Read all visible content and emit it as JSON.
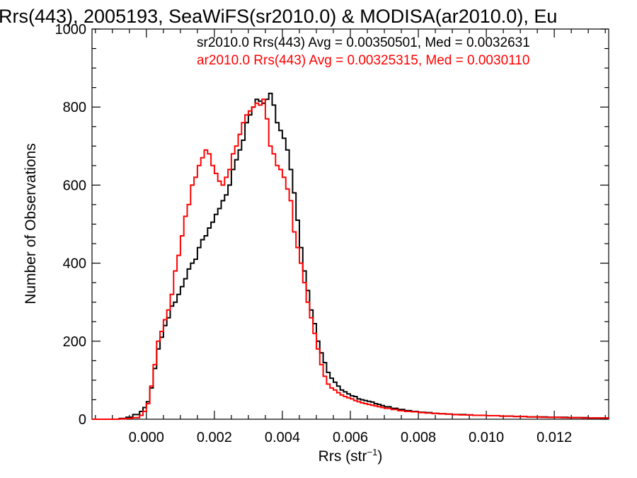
{
  "colors": {
    "series_black": "#000000",
    "series_red": "#ff0000",
    "background": "#ffffff"
  },
  "chart_data": {
    "type": "histogram",
    "title": "Rrs(443), 2005193, SeaWiFS(sr2010.0) & MODISA(ar2010.0), Eu",
    "xlabel": "Rrs (str",
    "xlabel_sup": "−1",
    "xlabel_end": ")",
    "ylabel": "Number of Observations",
    "xlim": [
      -0.0016,
      0.0136
    ],
    "ylim": [
      0,
      1000
    ],
    "x_ticks": [
      0.0,
      0.002,
      0.004,
      0.006,
      0.008,
      0.01,
      0.012
    ],
    "x_tick_labels": [
      "0.000",
      "0.002",
      "0.004",
      "0.006",
      "0.008",
      "0.010",
      "0.012"
    ],
    "y_ticks": [
      0,
      200,
      400,
      600,
      800,
      1000
    ],
    "y_tick_labels": [
      "0",
      "200",
      "400",
      "600",
      "800",
      "1000"
    ],
    "legend_position": "top-right",
    "annotations": [
      "sr2010.0 Rrs(443) Avg = 0.00350501, Med = 0.0032631",
      "ar2010.0 Rrs(443) Avg = 0.00325315, Med = 0.0030110"
    ],
    "series": [
      {
        "name": "sr2010.0",
        "color": "#000000",
        "points": [
          [
            -0.0016,
            0
          ],
          [
            -0.001,
            0
          ],
          [
            -0.0008,
            2
          ],
          [
            -0.0006,
            5
          ],
          [
            -0.0004,
            12
          ],
          [
            -0.0002,
            20
          ],
          [
            -0.0001,
            30
          ],
          [
            0.0,
            45
          ],
          [
            0.0001,
            80
          ],
          [
            0.0002,
            130
          ],
          [
            0.0003,
            180
          ],
          [
            0.0004,
            210
          ],
          [
            0.0005,
            240
          ],
          [
            0.0006,
            260
          ],
          [
            0.0007,
            290
          ],
          [
            0.0008,
            300
          ],
          [
            0.0009,
            320
          ],
          [
            0.001,
            340
          ],
          [
            0.0011,
            360
          ],
          [
            0.0012,
            385
          ],
          [
            0.0013,
            400
          ],
          [
            0.0014,
            410
          ],
          [
            0.0015,
            440
          ],
          [
            0.0016,
            460
          ],
          [
            0.0017,
            470
          ],
          [
            0.0018,
            490
          ],
          [
            0.0019,
            505
          ],
          [
            0.002,
            525
          ],
          [
            0.0021,
            540
          ],
          [
            0.0022,
            560
          ],
          [
            0.0023,
            575
          ],
          [
            0.0024,
            600
          ],
          [
            0.0025,
            640
          ],
          [
            0.0026,
            665
          ],
          [
            0.0027,
            690
          ],
          [
            0.0028,
            715
          ],
          [
            0.0029,
            760
          ],
          [
            0.003,
            780
          ],
          [
            0.0031,
            800
          ],
          [
            0.0032,
            820
          ],
          [
            0.0033,
            815
          ],
          [
            0.0034,
            810
          ],
          [
            0.0035,
            820
          ],
          [
            0.0036,
            835
          ],
          [
            0.0037,
            805
          ],
          [
            0.0038,
            760
          ],
          [
            0.0039,
            740
          ],
          [
            0.004,
            720
          ],
          [
            0.0041,
            690
          ],
          [
            0.0042,
            640
          ],
          [
            0.0043,
            580
          ],
          [
            0.0044,
            510
          ],
          [
            0.0045,
            440
          ],
          [
            0.0046,
            380
          ],
          [
            0.0047,
            330
          ],
          [
            0.0048,
            280
          ],
          [
            0.0049,
            245
          ],
          [
            0.005,
            200
          ],
          [
            0.0051,
            170
          ],
          [
            0.0052,
            145
          ],
          [
            0.0053,
            120
          ],
          [
            0.0054,
            105
          ],
          [
            0.0055,
            95
          ],
          [
            0.0056,
            85
          ],
          [
            0.0057,
            75
          ],
          [
            0.0058,
            70
          ],
          [
            0.0059,
            65
          ],
          [
            0.006,
            60
          ],
          [
            0.0061,
            58
          ],
          [
            0.0062,
            52
          ],
          [
            0.0063,
            50
          ],
          [
            0.0064,
            48
          ],
          [
            0.0065,
            46
          ],
          [
            0.0066,
            44
          ],
          [
            0.0067,
            40
          ],
          [
            0.0068,
            38
          ],
          [
            0.0069,
            35
          ],
          [
            0.007,
            32
          ],
          [
            0.0072,
            28
          ],
          [
            0.0074,
            25
          ],
          [
            0.0076,
            22
          ],
          [
            0.0078,
            20
          ],
          [
            0.008,
            18
          ],
          [
            0.0082,
            17
          ],
          [
            0.0084,
            15
          ],
          [
            0.0086,
            14
          ],
          [
            0.0088,
            13
          ],
          [
            0.009,
            12
          ],
          [
            0.0092,
            12
          ],
          [
            0.0094,
            11
          ],
          [
            0.0096,
            10
          ],
          [
            0.0098,
            10
          ],
          [
            0.01,
            9
          ],
          [
            0.0102,
            9
          ],
          [
            0.0104,
            8
          ],
          [
            0.0106,
            8
          ],
          [
            0.0108,
            7
          ],
          [
            0.011,
            7
          ],
          [
            0.0112,
            6
          ],
          [
            0.0114,
            6
          ],
          [
            0.0116,
            6
          ],
          [
            0.0118,
            5
          ],
          [
            0.012,
            5
          ],
          [
            0.0122,
            5
          ],
          [
            0.0124,
            4
          ],
          [
            0.0126,
            4
          ],
          [
            0.0128,
            4
          ],
          [
            0.013,
            3
          ],
          [
            0.0132,
            3
          ],
          [
            0.0134,
            3
          ],
          [
            0.0136,
            2
          ]
        ]
      },
      {
        "name": "ar2010.0",
        "color": "#ff0000",
        "points": [
          [
            -0.0016,
            0
          ],
          [
            -0.001,
            0
          ],
          [
            -0.0008,
            1
          ],
          [
            -0.0006,
            2
          ],
          [
            -0.0004,
            4
          ],
          [
            -0.0002,
            10
          ],
          [
            -0.0001,
            20
          ],
          [
            0.0,
            40
          ],
          [
            0.0001,
            85
          ],
          [
            0.0002,
            140
          ],
          [
            0.0003,
            200
          ],
          [
            0.0004,
            225
          ],
          [
            0.0005,
            255
          ],
          [
            0.0006,
            280
          ],
          [
            0.0007,
            320
          ],
          [
            0.0008,
            380
          ],
          [
            0.0009,
            420
          ],
          [
            0.001,
            470
          ],
          [
            0.0011,
            520
          ],
          [
            0.0012,
            550
          ],
          [
            0.0013,
            600
          ],
          [
            0.0014,
            620
          ],
          [
            0.0015,
            650
          ],
          [
            0.0016,
            670
          ],
          [
            0.0017,
            690
          ],
          [
            0.0018,
            680
          ],
          [
            0.0019,
            650
          ],
          [
            0.002,
            630
          ],
          [
            0.0021,
            610
          ],
          [
            0.0022,
            600
          ],
          [
            0.0023,
            620
          ],
          [
            0.0024,
            640
          ],
          [
            0.0025,
            680
          ],
          [
            0.0026,
            700
          ],
          [
            0.0027,
            730
          ],
          [
            0.0028,
            760
          ],
          [
            0.0029,
            780
          ],
          [
            0.003,
            790
          ],
          [
            0.0031,
            800
          ],
          [
            0.0032,
            810
          ],
          [
            0.0033,
            805
          ],
          [
            0.0034,
            820
          ],
          [
            0.0035,
            770
          ],
          [
            0.0036,
            700
          ],
          [
            0.0037,
            680
          ],
          [
            0.0038,
            650
          ],
          [
            0.0039,
            640
          ],
          [
            0.004,
            620
          ],
          [
            0.0041,
            590
          ],
          [
            0.0042,
            560
          ],
          [
            0.0043,
            480
          ],
          [
            0.0044,
            440
          ],
          [
            0.0045,
            400
          ],
          [
            0.0046,
            350
          ],
          [
            0.0047,
            300
          ],
          [
            0.0048,
            260
          ],
          [
            0.0049,
            220
          ],
          [
            0.005,
            180
          ],
          [
            0.0051,
            140
          ],
          [
            0.0052,
            110
          ],
          [
            0.0053,
            90
          ],
          [
            0.0054,
            80
          ],
          [
            0.0055,
            75
          ],
          [
            0.0056,
            68
          ],
          [
            0.0057,
            62
          ],
          [
            0.0058,
            58
          ],
          [
            0.0059,
            55
          ],
          [
            0.006,
            52
          ],
          [
            0.0061,
            48
          ],
          [
            0.0062,
            45
          ],
          [
            0.0063,
            42
          ],
          [
            0.0064,
            40
          ],
          [
            0.0065,
            38
          ],
          [
            0.0066,
            36
          ],
          [
            0.0067,
            34
          ],
          [
            0.0068,
            32
          ],
          [
            0.0069,
            30
          ],
          [
            0.007,
            28
          ],
          [
            0.0072,
            25
          ],
          [
            0.0074,
            22
          ],
          [
            0.0076,
            20
          ],
          [
            0.0078,
            19
          ],
          [
            0.008,
            17
          ],
          [
            0.0082,
            16
          ],
          [
            0.0084,
            15
          ],
          [
            0.0086,
            14
          ],
          [
            0.0088,
            13
          ],
          [
            0.009,
            12
          ],
          [
            0.0092,
            11
          ],
          [
            0.0094,
            11
          ],
          [
            0.0096,
            10
          ],
          [
            0.0098,
            10
          ],
          [
            0.01,
            9
          ],
          [
            0.0102,
            9
          ],
          [
            0.0104,
            8
          ],
          [
            0.0106,
            8
          ],
          [
            0.0108,
            7
          ],
          [
            0.011,
            7
          ],
          [
            0.0112,
            6
          ],
          [
            0.0114,
            6
          ],
          [
            0.0116,
            5
          ],
          [
            0.0118,
            5
          ],
          [
            0.012,
            5
          ],
          [
            0.0122,
            4
          ],
          [
            0.0124,
            4
          ],
          [
            0.0126,
            4
          ],
          [
            0.0128,
            3
          ],
          [
            0.013,
            3
          ],
          [
            0.0132,
            3
          ],
          [
            0.0134,
            3
          ],
          [
            0.0136,
            2
          ]
        ]
      }
    ]
  }
}
